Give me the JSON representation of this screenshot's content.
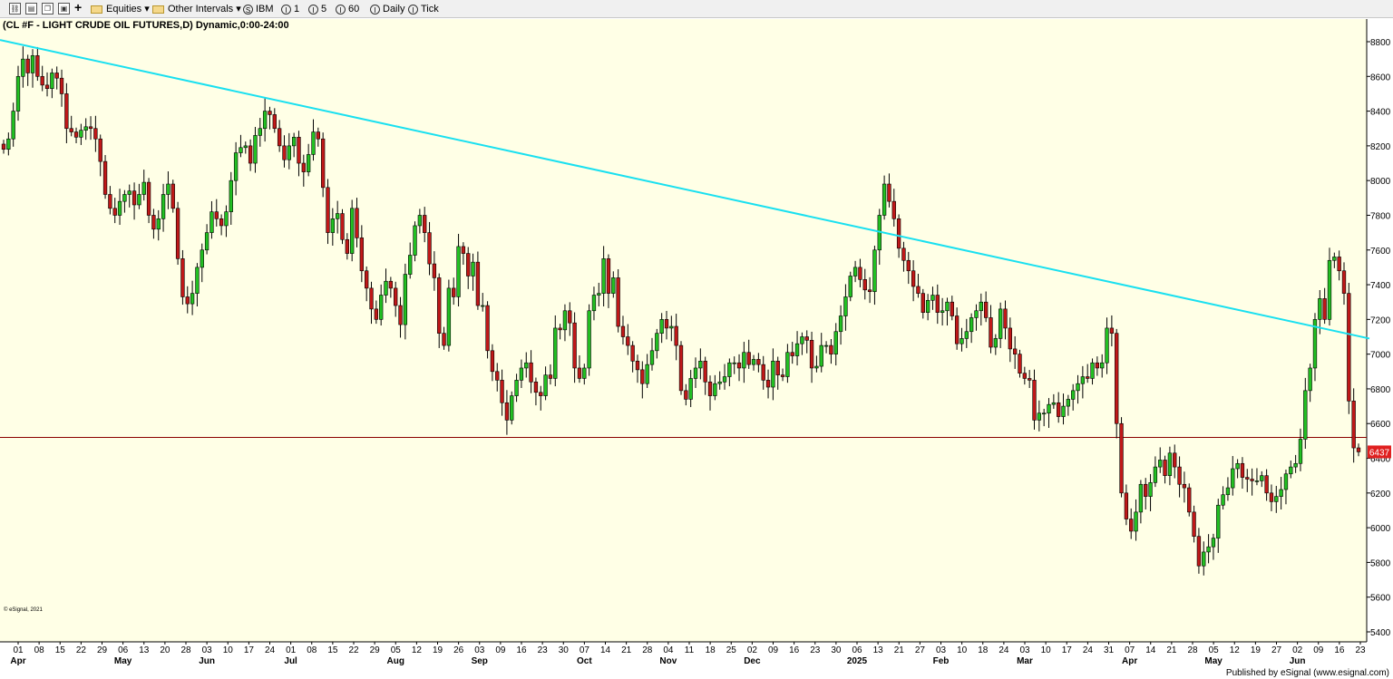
{
  "toolbar": {
    "equities_label": "Equities",
    "other_intervals_label": "Other Intervals",
    "symbol_label": "IBM",
    "interval_1_label": "1",
    "interval_5_label": "5",
    "interval_60_label": "60",
    "daily_label": "Daily",
    "tick_label": "Tick",
    "symbol_icon_glyph": "S",
    "interval_icon_glyph": "I"
  },
  "footer": {
    "copyright": "© eSignal, 2021",
    "published": "Published by eSignal (www.esignal.com)"
  },
  "chart_data": {
    "type": "candlestick",
    "title": "(CL #F - LIGHT CRUDE OIL FUTURES,D) Dynamic,0:00-24:00",
    "ylim": [
      5300,
      8950
    ],
    "y_ticks": [
      "8800",
      "8600",
      "8400",
      "8200",
      "8000",
      "7800",
      "7600",
      "7400",
      "7200",
      "7000",
      "6800",
      "6600",
      "6400",
      "6200",
      "6000",
      "5800",
      "5600",
      "5400"
    ],
    "last_price_label": "6437",
    "horizontal_line": 6520,
    "trend_line": {
      "from": {
        "date": "2024-03-28",
        "value": 8810
      },
      "to": {
        "date": "2025-06-23",
        "value": 7090
      }
    },
    "x_day_labels": [
      "01",
      "08",
      "15",
      "22",
      "29",
      "06",
      "13",
      "20",
      "28",
      "03",
      "10",
      "17",
      "24",
      "01",
      "08",
      "15",
      "22",
      "29",
      "05",
      "12",
      "19",
      "26",
      "03",
      "09",
      "16",
      "23",
      "30",
      "07",
      "14",
      "21",
      "28",
      "04",
      "11",
      "18",
      "25",
      "02",
      "09",
      "16",
      "23",
      "30",
      "06",
      "13",
      "21",
      "27",
      "03",
      "10",
      "18",
      "24",
      "03",
      "10",
      "17",
      "24",
      "31",
      "07",
      "14",
      "21",
      "28",
      "05",
      "12",
      "19",
      "27",
      "02",
      "09",
      "16",
      "23"
    ],
    "x_month_labels": [
      "Apr",
      "May",
      "Jun",
      "Jul",
      "Aug",
      "Sep",
      "Oct",
      "Nov",
      "Dec",
      "2025",
      "Feb",
      "Mar",
      "Apr",
      "May",
      "Jun"
    ],
    "bars_close": [
      8180,
      8240,
      8400,
      8600,
      8700,
      8620,
      8720,
      8600,
      8550,
      8530,
      8620,
      8590,
      8500,
      8300,
      8280,
      8250,
      8290,
      8310,
      8300,
      8240,
      8110,
      7920,
      7840,
      7800,
      7880,
      7920,
      7940,
      7860,
      7920,
      7990,
      7800,
      7720,
      7780,
      7920,
      7980,
      7840,
      7550,
      7330,
      7290,
      7350,
      7500,
      7600,
      7700,
      7820,
      7780,
      7740,
      7820,
      8000,
      8160,
      8190,
      8200,
      8100,
      8260,
      8300,
      8400,
      8380,
      8300,
      8200,
      8120,
      8200,
      8250,
      8100,
      8050,
      8150,
      8280,
      8240,
      7960,
      7700,
      7780,
      7810,
      7660,
      7580,
      7840,
      7670,
      7480,
      7380,
      7260,
      7200,
      7340,
      7420,
      7380,
      7280,
      7170,
      7460,
      7570,
      7740,
      7800,
      7700,
      7520,
      7440,
      7120,
      7050,
      7380,
      7330,
      7620,
      7580,
      7450,
      7530,
      7280,
      7280,
      7020,
      6900,
      6850,
      6720,
      6620,
      6760,
      6850,
      6920,
      6950,
      6840,
      6780,
      6760,
      6880,
      6860,
      7150,
      7140,
      7250,
      7180,
      6920,
      6860,
      6920,
      7250,
      7340,
      7350,
      7550,
      7350,
      7440,
      7160,
      7100,
      7050,
      6960,
      6910,
      6830,
      6940,
      7020,
      7120,
      7200,
      7150,
      7160,
      7050,
      6790,
      6740,
      6860,
      6920,
      6960,
      6840,
      6760,
      6830,
      6840,
      6870,
      6950,
      6950,
      6920,
      7010,
      6940,
      6970,
      6940,
      6850,
      6810,
      6960,
      6880,
      6870,
      7010,
      6990,
      7060,
      7100,
      7080,
      6920,
      6930,
      7050,
      7050,
      7000,
      7130,
      7220,
      7330,
      7450,
      7500,
      7430,
      7370,
      7360,
      7600,
      7800,
      7980,
      7880,
      7780,
      7610,
      7540,
      7480,
      7390,
      7350,
      7240,
      7310,
      7340,
      7240,
      7250,
      7300,
      7220,
      7060,
      7090,
      7130,
      7210,
      7250,
      7300,
      7210,
      7040,
      7090,
      7260,
      7150,
      7030,
      7000,
      6890,
      6860,
      6850,
      6620,
      6660,
      6660,
      6710,
      6720,
      6640,
      6700,
      6740,
      6790,
      6830,
      6870,
      6860,
      6950,
      6920,
      6950,
      7150,
      7120,
      6600,
      6200,
      6050,
      5980,
      6090,
      6250,
      6180,
      6260,
      6350,
      6390,
      6300,
      6430,
      6350,
      6250,
      6230,
      6090,
      5950,
      5780,
      5860,
      5890,
      5940,
      6130,
      6190,
      6230,
      6340,
      6370,
      6290,
      6280,
      6270,
      6270,
      6300,
      6200,
      6150,
      6180,
      6220,
      6310,
      6350,
      6370,
      6510,
      6790,
      6920,
      7200,
      7320,
      7200,
      7540,
      7560,
      7480,
      7350,
      6730,
      6460,
      6437
    ]
  }
}
